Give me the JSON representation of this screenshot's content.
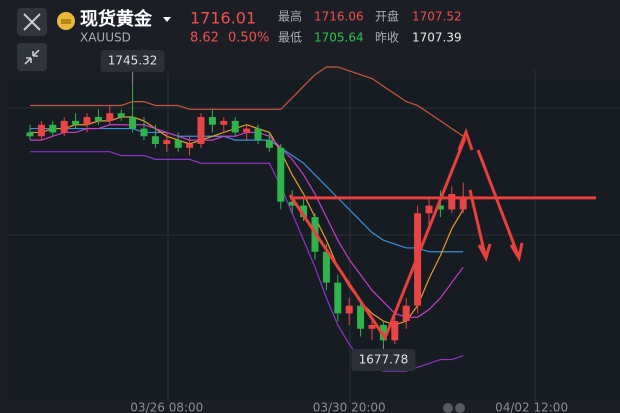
{
  "header": {
    "name": "现货黄金",
    "symbol": "XAUUSD",
    "price": 1716.01,
    "change": "8.62",
    "change_pct": "0.50%",
    "high_label": "最高",
    "high": "1716.06",
    "open_label": "开盘",
    "open": "1707.52",
    "low_label": "最低",
    "low": "1705.64",
    "prev_label": "昨收",
    "prev_close": "1707.39"
  },
  "chart_data": {
    "type": "candlestick",
    "up_color": "#e84646",
    "down_color": "#2fb44c",
    "ylim": [
      1663.5,
      1764.8
    ],
    "categories": [
      null,
      null,
      null,
      null,
      null,
      null,
      null,
      null,
      null,
      null,
      null,
      null,
      "03/26 08:00",
      null,
      null,
      null,
      null,
      null,
      null,
      null,
      null,
      null,
      null,
      null,
      null,
      null,
      null,
      null,
      "03/30 20:00",
      null,
      null,
      null,
      null,
      null,
      null,
      null,
      null,
      null,
      null,
      null,
      null,
      null,
      null,
      null,
      "04/02 12:00",
      null,
      null,
      null,
      null,
      null,
      null,
      null
    ],
    "open": [
      1733,
      1732,
      1735,
      1733,
      1736,
      1735,
      1737,
      1736,
      1738,
      1737,
      1734,
      1732,
      1730,
      1731,
      1729,
      1730,
      1737,
      1735,
      1736,
      1733,
      1734,
      1731,
      1729,
      1715,
      1714,
      1711,
      1702,
      1694,
      1686,
      1688,
      1682,
      1683,
      1679,
      1684,
      1688,
      1712,
      1714,
      1713,
      1713,
      null,
      null,
      null,
      null,
      null,
      null,
      null,
      null,
      null,
      null,
      null,
      null,
      null
    ],
    "high": [
      1735,
      1736,
      1736,
      1737,
      1738,
      1738,
      1739,
      1740,
      1739,
      1745.32,
      1737,
      1735,
      1733,
      1733,
      1732,
      1738,
      1739,
      1737,
      1737,
      1735,
      1735,
      1733,
      1730,
      1718,
      1716,
      1712,
      1704,
      1696,
      1690,
      1689,
      1685,
      1684,
      1685,
      1690,
      1714,
      1716,
      1718,
      1719,
      1720,
      null,
      null,
      null,
      null,
      null,
      null,
      null,
      null,
      null,
      null,
      null,
      null,
      null
    ],
    "low": [
      1731,
      1731,
      1732,
      1732,
      1734,
      1733,
      1735,
      1735,
      1736,
      1733,
      1731,
      1729,
      1728,
      1728,
      1727,
      1729,
      1733,
      1733,
      1732,
      1731,
      1730,
      1728,
      1713,
      1712,
      1710,
      1700,
      1692,
      1684,
      1683,
      1680,
      1679,
      1677.78,
      1678,
      1682,
      1686,
      1708,
      1711,
      1712,
      1712,
      null,
      null,
      null,
      null,
      null,
      null,
      null,
      null,
      null,
      null,
      null,
      null,
      null
    ],
    "close": [
      1732,
      1735,
      1733,
      1736,
      1735,
      1737,
      1736,
      1738,
      1737,
      1734,
      1732,
      1730,
      1731,
      1729,
      1730,
      1737,
      1735,
      1736,
      1733,
      1734,
      1731,
      1729,
      1715,
      1714,
      1711,
      1702,
      1694,
      1686,
      1688,
      1682,
      1683,
      1679,
      1684,
      1688,
      1712,
      1714,
      1713,
      1717,
      1716.01,
      null,
      null,
      null,
      null,
      null,
      null,
      null,
      null,
      null,
      null,
      null,
      null,
      null
    ],
    "lines": [
      {
        "color": "#c8553f",
        "values": [
          1740,
          1740,
          1740,
          1740,
          1740,
          1740,
          1740,
          1740,
          1740,
          1741,
          1741,
          1740,
          1740,
          1740,
          1739,
          1739,
          1739,
          1739,
          1739,
          1739,
          1739,
          1739,
          1739,
          1742,
          1745,
          1748,
          1750,
          1750,
          1749,
          1748,
          1747,
          1745,
          1743,
          1741,
          1740,
          1738,
          1736,
          1734,
          1732,
          null,
          null,
          null,
          null,
          null,
          null,
          null,
          null,
          null,
          null,
          null,
          null,
          null
        ]
      },
      {
        "color": "#3a8fd8",
        "values": [
          1734,
          1734,
          1734,
          1734,
          1734,
          1734,
          1734,
          1734,
          1734,
          1734,
          1733,
          1733,
          1733,
          1732,
          1732,
          1732,
          1732,
          1732,
          1731,
          1731,
          1731,
          1731,
          1729,
          1727,
          1725,
          1722,
          1719,
          1716,
          1713,
          1710,
          1707,
          1705,
          1704,
          1703,
          1703,
          1702,
          1702,
          1702,
          1702,
          null,
          null,
          null,
          null,
          null,
          null,
          null,
          null,
          null,
          null,
          null,
          null,
          null
        ]
      },
      {
        "color": "#8b35c8",
        "values": [
          1728,
          1728,
          1728,
          1728,
          1728,
          1728,
          1728,
          1728,
          1727,
          1727,
          1727,
          1726,
          1726,
          1726,
          1726,
          1725,
          1725,
          1725,
          1725,
          1725,
          1725,
          1725,
          1719,
          1712,
          1705,
          1698,
          1690,
          1683,
          1678,
          1674,
          1672,
          1671,
          1671,
          1671,
          1672,
          1673,
          1674,
          1674,
          1675,
          null,
          null,
          null,
          null,
          null,
          null,
          null,
          null,
          null,
          null,
          null,
          null,
          null
        ]
      },
      {
        "color": "#e89a2e",
        "values": [
          1733,
          1733,
          1734,
          1734,
          1735,
          1735,
          1736,
          1736,
          1737,
          1737,
          1736,
          1734,
          1732,
          1731,
          1730,
          1731,
          1732,
          1733,
          1734,
          1735,
          1734,
          1733,
          1728,
          1722,
          1717,
          1711,
          1705,
          1698,
          1693,
          1689,
          1686,
          1684,
          1683,
          1684,
          1688,
          1695,
          1701,
          1708,
          1713,
          null,
          null,
          null,
          null,
          null,
          null,
          null,
          null,
          null,
          null,
          null,
          null,
          null
        ]
      },
      {
        "color": "#c83cc8",
        "values": [
          1731,
          1731,
          1732,
          1733,
          1733,
          1734,
          1734,
          1735,
          1735,
          1735,
          1735,
          1734,
          1733,
          1732,
          1731,
          1731,
          1731,
          1732,
          1732,
          1733,
          1733,
          1732,
          1729,
          1726,
          1722,
          1717,
          1711,
          1705,
          1700,
          1696,
          1692,
          1689,
          1686,
          1685,
          1685,
          1687,
          1690,
          1694,
          1698,
          null,
          null,
          null,
          null,
          null,
          null,
          null,
          null,
          null,
          null,
          null,
          null,
          null
        ]
      }
    ]
  }
}
